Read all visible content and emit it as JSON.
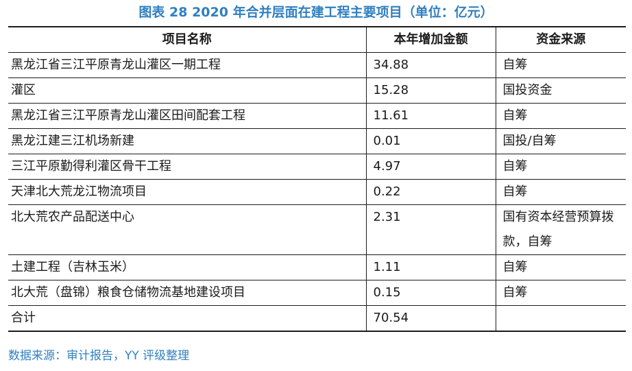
{
  "title": "图表 28  2020 年合并层面在建工程主要项目（单位：亿元）",
  "columns": [
    "项目名称",
    "本年增加金额",
    "资金来源"
  ],
  "rows": [
    {
      "name": "黑龙江省三江平原青龙山灌区一期工程",
      "amount": "34.88",
      "source": "自筹"
    },
    {
      "name": "灌区",
      "amount": "15.28",
      "source": "国投资金"
    },
    {
      "name": "黑龙江省三江平原青龙山灌区田间配套工程",
      "amount": "11.61",
      "source": "自筹"
    },
    {
      "name": "黑龙江建三江机场新建",
      "amount": "0.01",
      "source": "国投/自筹"
    },
    {
      "name": "三江平原勤得利灌区骨干工程",
      "amount": "4.97",
      "source": "自筹"
    },
    {
      "name": "天津北大荒龙江物流项目",
      "amount": "0.22",
      "source": "自筹"
    },
    {
      "name": "北大荒农产品配送中心",
      "amount": "2.31",
      "source": "国有资本经营预算拨款，自筹"
    },
    {
      "name": "土建工程（吉林玉米）",
      "amount": "1.11",
      "source": "自筹"
    },
    {
      "name": "北大荒（盘锦）粮食仓储物流基地建设项目",
      "amount": "0.15",
      "source": "自筹"
    },
    {
      "name": "合计",
      "amount": "70.54",
      "source": ""
    }
  ],
  "footnote": "数据来源：审计报告，YY 评级整理",
  "colors": {
    "accent": "#2f7fc1",
    "text": "#1a1a1a"
  }
}
